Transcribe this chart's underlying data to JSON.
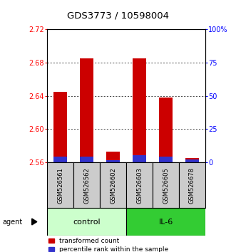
{
  "title": "GDS3773 / 10598004",
  "samples": [
    "GSM526561",
    "GSM526562",
    "GSM526602",
    "GSM526603",
    "GSM526605",
    "GSM526678"
  ],
  "red_values": [
    2.645,
    2.685,
    2.573,
    2.685,
    2.638,
    2.565
  ],
  "blue_values": [
    2.567,
    2.567,
    2.563,
    2.569,
    2.567,
    2.564
  ],
  "ymin": 2.56,
  "ymax": 2.72,
  "yticks": [
    2.56,
    2.6,
    2.64,
    2.68,
    2.72
  ],
  "right_yticks": [
    0,
    25,
    50,
    75,
    100
  ],
  "right_ylabels": [
    "0",
    "25",
    "50",
    "75",
    "100%"
  ],
  "bar_width": 0.5,
  "red_color": "#cc0000",
  "blue_color": "#3333cc",
  "control_color": "#ccffcc",
  "il6_color": "#33cc33",
  "sample_box_color": "#cccccc",
  "title_fontsize": 9.5,
  "tick_fontsize": 7,
  "legend_fontsize": 6.5,
  "group_label_fontsize": 8,
  "sample_fontsize": 6
}
